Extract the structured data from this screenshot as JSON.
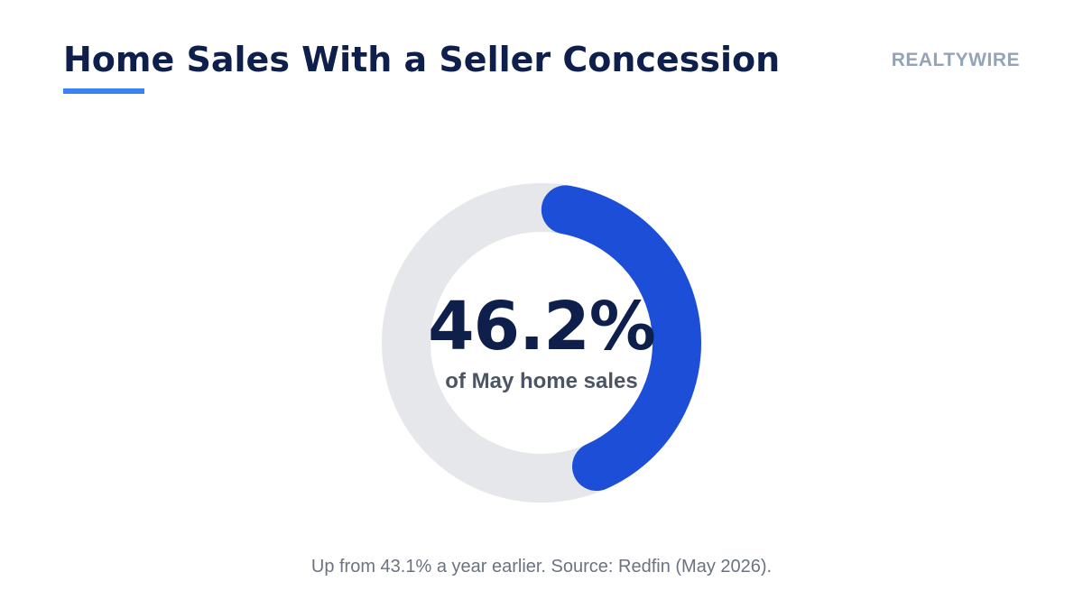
{
  "header": {
    "title": "Home Sales With a Seller Concession",
    "brand": "REALTYWIRE"
  },
  "chart_data": {
    "type": "pie",
    "variant": "donut",
    "value_percent": 46.2,
    "center_value": "46.2%",
    "center_label": "of May home sales",
    "footnote": "Up from 43.1% a year earlier. Source: Redfin (May 2026).",
    "colors": {
      "value_arc": "#1d4ed8",
      "track": "#e5e7eb"
    }
  }
}
